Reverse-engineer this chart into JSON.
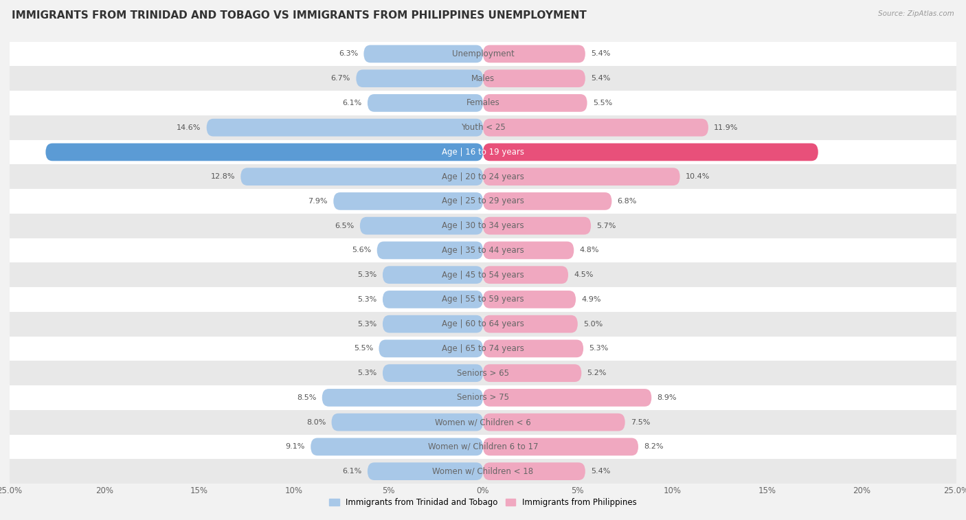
{
  "title": "IMMIGRANTS FROM TRINIDAD AND TOBAGO VS IMMIGRANTS FROM PHILIPPINES UNEMPLOYMENT",
  "source": "Source: ZipAtlas.com",
  "categories": [
    "Unemployment",
    "Males",
    "Females",
    "Youth < 25",
    "Age | 16 to 19 years",
    "Age | 20 to 24 years",
    "Age | 25 to 29 years",
    "Age | 30 to 34 years",
    "Age | 35 to 44 years",
    "Age | 45 to 54 years",
    "Age | 55 to 59 years",
    "Age | 60 to 64 years",
    "Age | 65 to 74 years",
    "Seniors > 65",
    "Seniors > 75",
    "Women w/ Children < 6",
    "Women w/ Children 6 to 17",
    "Women w/ Children < 18"
  ],
  "left_values": [
    6.3,
    6.7,
    6.1,
    14.6,
    23.1,
    12.8,
    7.9,
    6.5,
    5.6,
    5.3,
    5.3,
    5.3,
    5.5,
    5.3,
    8.5,
    8.0,
    9.1,
    6.1
  ],
  "right_values": [
    5.4,
    5.4,
    5.5,
    11.9,
    17.7,
    10.4,
    6.8,
    5.7,
    4.8,
    4.5,
    4.9,
    5.0,
    5.3,
    5.2,
    8.9,
    7.5,
    8.2,
    5.4
  ],
  "left_color": "#a8c8e8",
  "right_color": "#f0a8c0",
  "left_highlight_color": "#5b9bd5",
  "right_highlight_color": "#e8507a",
  "highlight_index": 4,
  "left_label": "Immigrants from Trinidad and Tobago",
  "right_label": "Immigrants from Philippines",
  "axis_limit": 25.0,
  "bg_color": "#f2f2f2",
  "row_color_odd": "#ffffff",
  "row_color_even": "#e8e8e8",
  "title_fontsize": 11,
  "label_fontsize": 8.5,
  "value_fontsize": 8,
  "bar_height": 0.72
}
